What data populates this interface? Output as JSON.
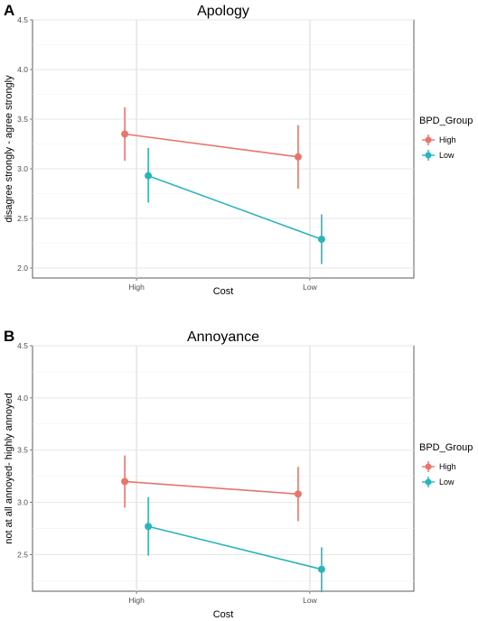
{
  "chart_data": [
    {
      "panel": "A",
      "type": "line",
      "title": "Apology",
      "xlabel": "Cost",
      "ylabel": "disagree strongly - agree strongly",
      "categories": [
        "High",
        "Low"
      ],
      "ylim": [
        1.9,
        4.5
      ],
      "yticks": [
        "2.0",
        "2.5",
        "3.0",
        "3.5",
        "4.0",
        "4.5"
      ],
      "grid": true,
      "legend": {
        "title": "BPD_Group",
        "position": "right"
      },
      "series": [
        {
          "name": "High",
          "color": "#e8756b",
          "values": [
            3.35,
            3.12
          ],
          "lower": [
            3.08,
            2.8
          ],
          "upper": [
            3.62,
            3.44
          ]
        },
        {
          "name": "Low",
          "color": "#29b4bb",
          "values": [
            2.93,
            2.29
          ],
          "lower": [
            2.66,
            2.04
          ],
          "upper": [
            3.21,
            2.54
          ]
        }
      ]
    },
    {
      "panel": "B",
      "type": "line",
      "title": "Annoyance",
      "xlabel": "Cost",
      "ylabel": "not at all annoyed- highly annoyed",
      "categories": [
        "High",
        "Low"
      ],
      "ylim": [
        2.15,
        4.5
      ],
      "yticks": [
        "2.5",
        "3.0",
        "3.5",
        "4.0",
        "4.5"
      ],
      "grid": true,
      "legend": {
        "title": "BPD_Group",
        "position": "right"
      },
      "series": [
        {
          "name": "High",
          "color": "#e8756b",
          "values": [
            3.2,
            3.08
          ],
          "lower": [
            2.95,
            2.82
          ],
          "upper": [
            3.45,
            3.34
          ]
        },
        {
          "name": "Low",
          "color": "#29b4bb",
          "values": [
            2.77,
            2.36
          ],
          "lower": [
            2.49,
            2.14
          ],
          "upper": [
            3.05,
            2.57
          ]
        }
      ]
    }
  ]
}
